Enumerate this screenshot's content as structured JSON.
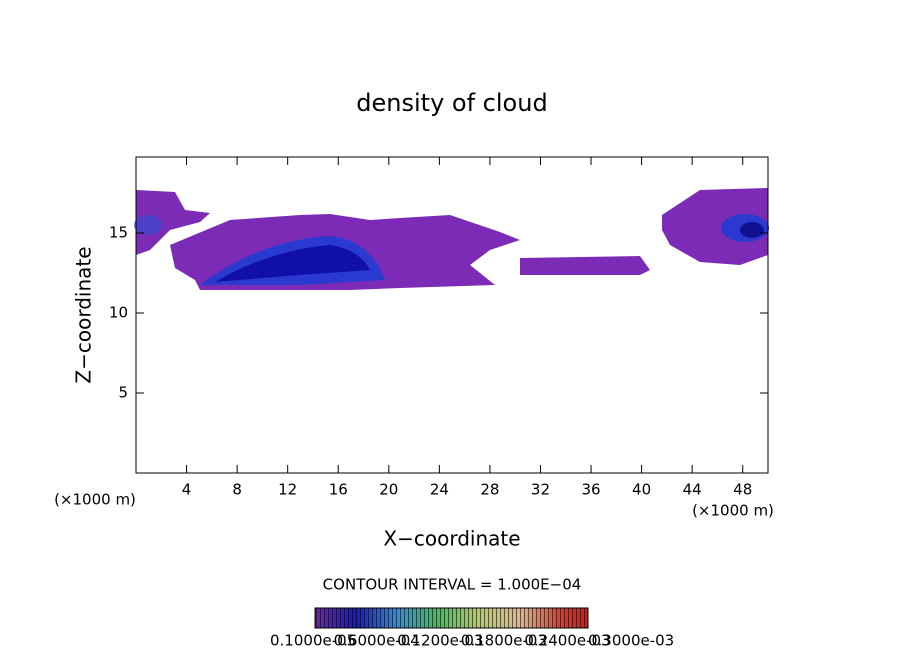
{
  "chart_data": {
    "type": "contour",
    "title": "density of cloud",
    "x_label": "X−coordinate",
    "y_label": "Z−coordinate",
    "x_unit": "(×1000 m)",
    "y_unit": "(×1000 m)",
    "xlim": [
      0,
      50
    ],
    "xticks": [
      4,
      8,
      12,
      16,
      20,
      24,
      28,
      32,
      36,
      40,
      44,
      48
    ],
    "ylim": [
      0,
      19.75
    ],
    "yticks": [
      5,
      10,
      15
    ],
    "contour_interval": "CONTOUR INTERVAL = 1.000E−04",
    "colorbar_labels": [
      "0.1000e-05",
      "0.6000e-04",
      "0.1200e-03",
      "0.1800e-03",
      "0.2400e-03",
      "0.3000e-03"
    ]
  }
}
